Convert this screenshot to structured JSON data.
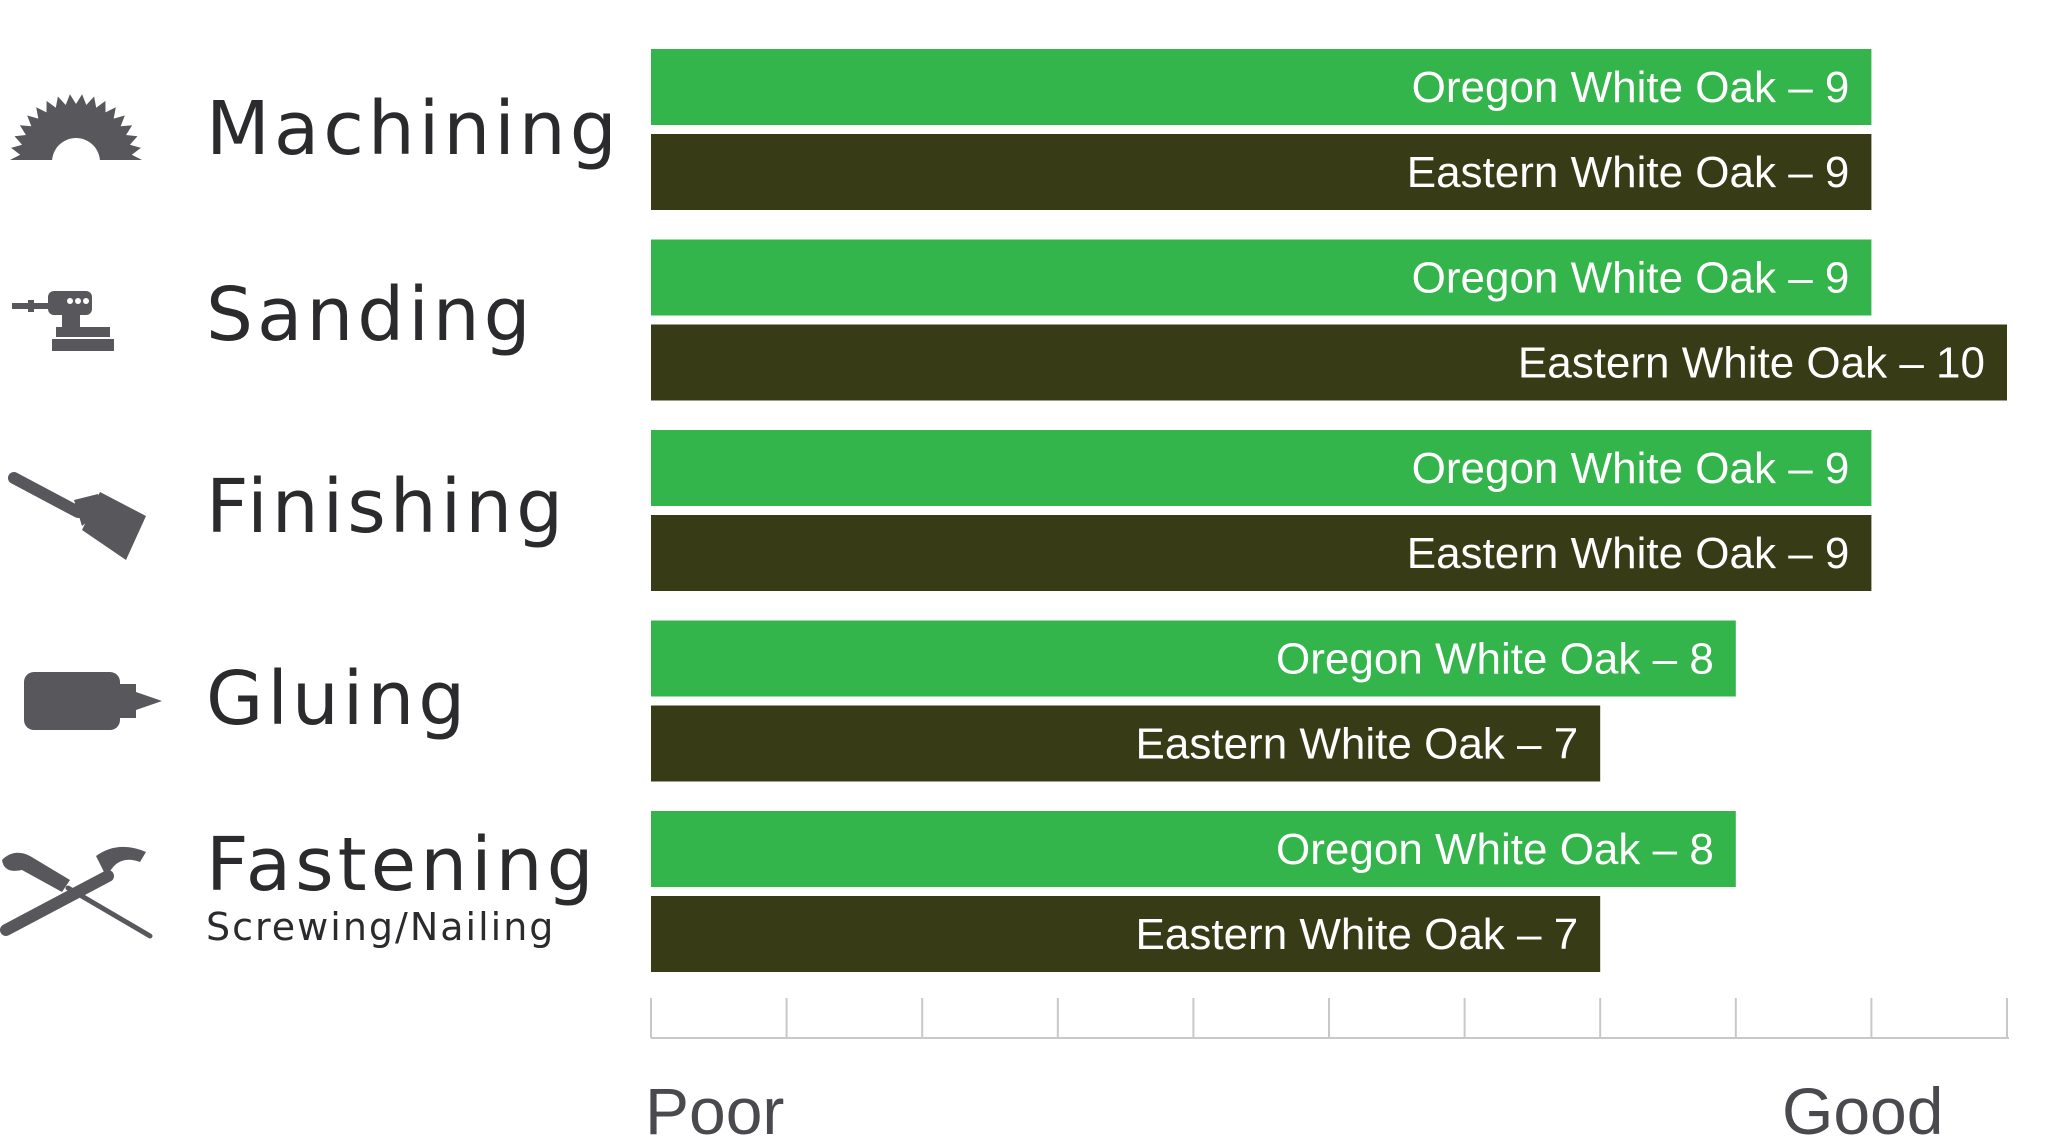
{
  "chart_data": {
    "type": "bar",
    "orientation": "horizontal",
    "categories": [
      {
        "label": "Machining",
        "sublabel": "",
        "icon": "saw-blade-icon"
      },
      {
        "label": "Sanding",
        "sublabel": "",
        "icon": "orbital-sander-icon"
      },
      {
        "label": "Finishing",
        "sublabel": "",
        "icon": "paintbrush-icon"
      },
      {
        "label": "Gluing",
        "sublabel": "",
        "icon": "glue-bottle-icon"
      },
      {
        "label": "Fastening",
        "sublabel": "Screwing/Nailing",
        "icon": "screwdriver-hammer-icon"
      }
    ],
    "series": [
      {
        "name": "Oregon White Oak",
        "color": "#34b54c",
        "values": [
          9,
          9,
          9,
          8,
          8
        ]
      },
      {
        "name": "Eastern White Oak",
        "color": "#373c16",
        "values": [
          9,
          10,
          9,
          7,
          7
        ]
      }
    ],
    "bar_label_separator": " – ",
    "xlim": [
      0,
      10
    ],
    "x_axis_labels": {
      "min": "Poor",
      "max": "Good"
    },
    "axis_color": "#c8c8c8",
    "icon_color": "#58585c",
    "grid": false,
    "legend": "none"
  }
}
